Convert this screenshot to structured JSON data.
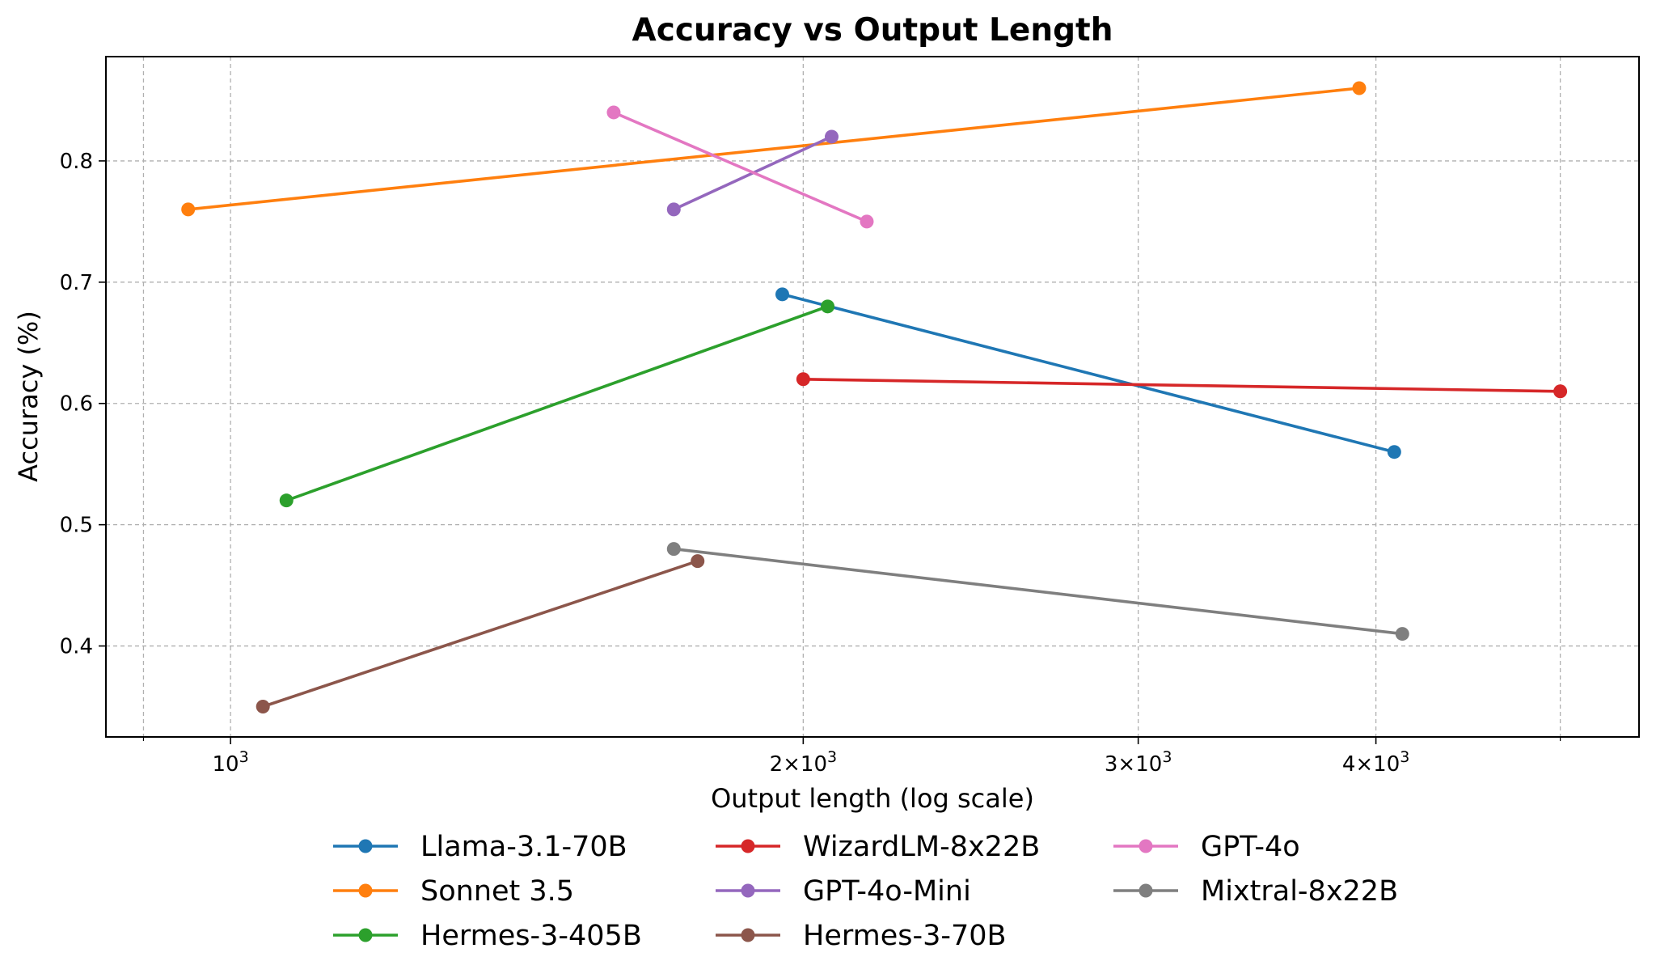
{
  "chart_data": {
    "type": "line",
    "title": "Accuracy vs Output Length",
    "xlabel": "Output length (log scale)",
    "ylabel": "Accuracy (%)",
    "xscale": "log",
    "xlim": [
      860,
      5500
    ],
    "ylim": [
      0.325,
      0.886
    ],
    "grid": true,
    "legend_position": "below plot",
    "x_ticks": [
      {
        "value": 1000,
        "base": "10",
        "exp": "3"
      },
      {
        "value": 2000,
        "base": "2×10",
        "exp": "3"
      },
      {
        "value": 3000,
        "base": "3×10",
        "exp": "3"
      },
      {
        "value": 4000,
        "base": "4×10",
        "exp": "3"
      }
    ],
    "x_minor_ticks": [
      900,
      5000
    ],
    "y_ticks": [
      {
        "value": 0.4,
        "label": "0.4"
      },
      {
        "value": 0.5,
        "label": "0.5"
      },
      {
        "value": 0.6,
        "label": "0.6"
      },
      {
        "value": 0.7,
        "label": "0.7"
      },
      {
        "value": 0.8,
        "label": "0.8"
      }
    ],
    "series": [
      {
        "name": "Llama-3.1-70B",
        "color": "#1f77b4",
        "x": [
          1950,
          4090
        ],
        "y": [
          0.69,
          0.56
        ]
      },
      {
        "name": "Sonnet 3.5",
        "color": "#ff7f0e",
        "x": [
          950,
          3920
        ],
        "y": [
          0.76,
          0.86
        ]
      },
      {
        "name": "Hermes-3-405B",
        "color": "#2ca02c",
        "x": [
          1070,
          2060
        ],
        "y": [
          0.52,
          0.68
        ]
      },
      {
        "name": "WizardLM-8x22B",
        "color": "#d62728",
        "x": [
          2000,
          5000
        ],
        "y": [
          0.62,
          0.61
        ]
      },
      {
        "name": "GPT-4o-Mini",
        "color": "#9467bd",
        "x": [
          1710,
          2070
        ],
        "y": [
          0.76,
          0.82
        ]
      },
      {
        "name": "Hermes-3-70B",
        "color": "#8c564b",
        "x": [
          1040,
          1760
        ],
        "y": [
          0.35,
          0.47
        ]
      },
      {
        "name": "GPT-4o",
        "color": "#e377c2",
        "x": [
          1590,
          2160
        ],
        "y": [
          0.84,
          0.75
        ]
      },
      {
        "name": "Mixtral-8x22B",
        "color": "#7f7f7f",
        "x": [
          1710,
          4130
        ],
        "y": [
          0.48,
          0.41
        ]
      }
    ]
  }
}
